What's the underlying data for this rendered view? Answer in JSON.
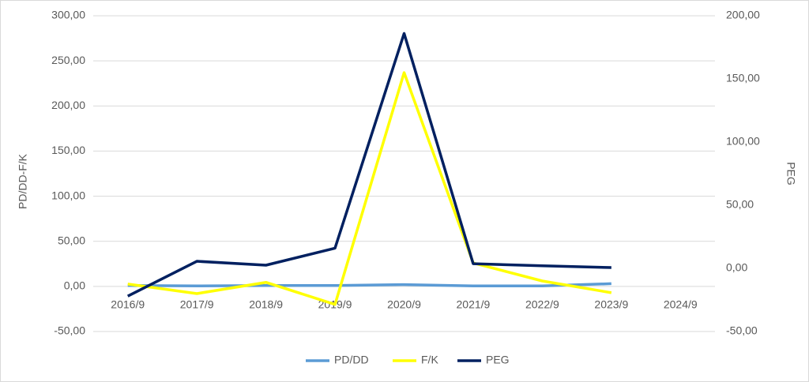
{
  "chart_data": {
    "type": "line",
    "categories": [
      "2016/9",
      "2017/9",
      "2018/9",
      "2019/9",
      "2020/9",
      "2021/9",
      "2022/9",
      "2023/9",
      "2024/9"
    ],
    "y_label": "PD/DD-F/K",
    "y2_label": "PEG",
    "ylim": [
      -50,
      300
    ],
    "yticks": [
      {
        "value": -50,
        "label": "-50,00"
      },
      {
        "value": 0,
        "label": "0,00"
      },
      {
        "value": 50,
        "label": "50,00"
      },
      {
        "value": 100,
        "label": "100,00"
      },
      {
        "value": 150,
        "label": "150,00"
      },
      {
        "value": 200,
        "label": "200,00"
      },
      {
        "value": 250,
        "label": "250,00"
      },
      {
        "value": 300,
        "label": "300,00"
      }
    ],
    "y2lim": [
      -50,
      200
    ],
    "y2ticks": [
      {
        "value": -50,
        "label": "-50,00"
      },
      {
        "value": 0,
        "label": "0,00"
      },
      {
        "value": 50,
        "label": "50,00"
      },
      {
        "value": 100,
        "label": "100,00"
      },
      {
        "value": 150,
        "label": "150,00"
      },
      {
        "value": 200,
        "label": "200,00"
      }
    ],
    "grid": true,
    "legend": "bottom",
    "series": [
      {
        "name": "PD/DD",
        "color": "#5b9bd5",
        "values": [
          1,
          0.5,
          1,
          1,
          2,
          0.5,
          0.5,
          3,
          null
        ]
      },
      {
        "name": "F/K",
        "color": "#ffff00",
        "values": [
          2.6,
          -8,
          4.5,
          -20,
          237,
          26,
          6,
          -7,
          null
        ]
      },
      {
        "name": "PEG",
        "color": "#002060",
        "axis": "y2",
        "values": [
          -22,
          5.6,
          2.5,
          16,
          186,
          3.7,
          2,
          0.6,
          null
        ]
      }
    ]
  }
}
